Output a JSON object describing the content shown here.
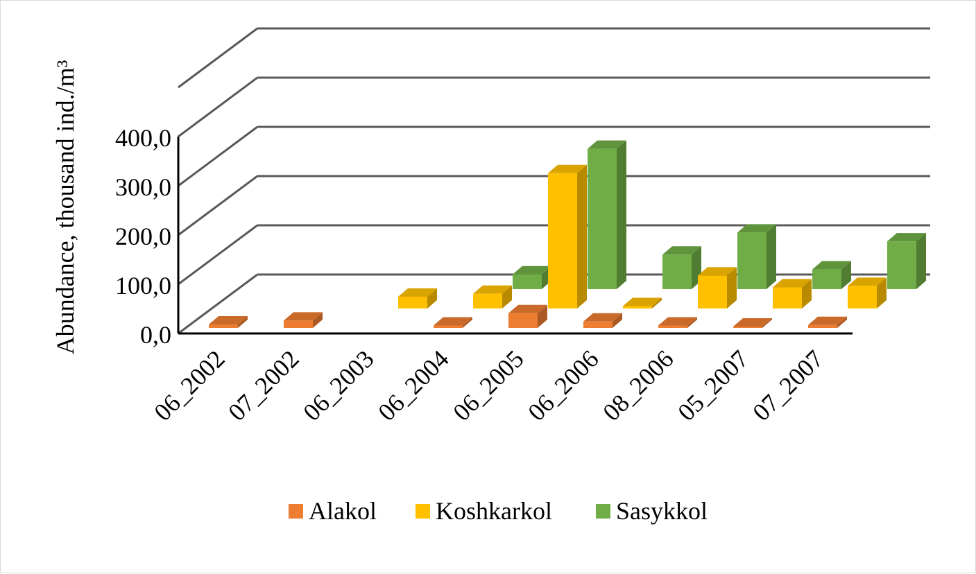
{
  "chart_data": {
    "type": "bar",
    "variant": "3d-clustered-column",
    "title": "",
    "xlabel": "",
    "ylabel": "Abundance, thousand ind./m³",
    "ylim": [
      0,
      400
    ],
    "yticks": [
      "0,0",
      "100,0",
      "200,0",
      "300,0",
      "400,0"
    ],
    "grid": true,
    "legend_position": "bottom",
    "categories": [
      "06_2002",
      "07_2002",
      "06_2003",
      "06_2004",
      "06_2005",
      "06_2006",
      "08_2006",
      "05_2007",
      "07_2007"
    ],
    "series": [
      {
        "name": "Alakol",
        "color": "#ED7D31",
        "values": [
          7,
          15,
          null,
          5,
          30,
          13,
          5,
          2,
          6
        ]
      },
      {
        "name": "Koshkarkol",
        "color": "#FFC000",
        "values": [
          null,
          null,
          24,
          30,
          275,
          5,
          67,
          43,
          46
        ]
      },
      {
        "name": "Sasykkol",
        "color": "#70AD47",
        "values": [
          null,
          null,
          null,
          30,
          285,
          70,
          115,
          40,
          97
        ]
      }
    ]
  }
}
